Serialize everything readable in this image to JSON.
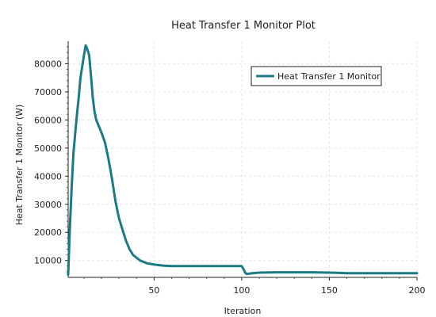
{
  "chart_data": {
    "type": "line",
    "title": "Heat Transfer 1 Monitor Plot",
    "xlabel": "Iteration",
    "ylabel": "Heat Transfer 1 Monitor (W)",
    "xlim": [
      1,
      200
    ],
    "ylim": [
      4000,
      88000
    ],
    "x_ticks": [
      50,
      100,
      150,
      200
    ],
    "y_ticks": [
      10000,
      20000,
      30000,
      40000,
      50000,
      60000,
      70000,
      80000
    ],
    "grid": true,
    "legend_position": "top-right",
    "series": [
      {
        "name": "Heat Transfer 1 Monitor",
        "color": "#1a7a86",
        "x": [
          1,
          2,
          3,
          4,
          5,
          6,
          7,
          8,
          9,
          10,
          11,
          12,
          13,
          14,
          15,
          16,
          17,
          18,
          19,
          20,
          22,
          24,
          26,
          28,
          30,
          32,
          34,
          36,
          38,
          40,
          42,
          44,
          46,
          48,
          50,
          52,
          55,
          58,
          60,
          65,
          70,
          80,
          90,
          100,
          101,
          102,
          103,
          105,
          110,
          120,
          130,
          140,
          150,
          155,
          160,
          170,
          180,
          190,
          200
        ],
        "y": [
          5000,
          22000,
          36000,
          48000,
          55000,
          62000,
          68000,
          75000,
          79000,
          83000,
          86500,
          85000,
          83000,
          76000,
          68000,
          63000,
          60000,
          58500,
          57000,
          55500,
          52000,
          46000,
          39000,
          31000,
          25000,
          21000,
          17000,
          14000,
          12000,
          11000,
          10000,
          9500,
          9000,
          8800,
          8600,
          8400,
          8200,
          8100,
          8000,
          8000,
          8000,
          8000,
          8000,
          8000,
          7000,
          5600,
          5200,
          5400,
          5700,
          5800,
          5800,
          5800,
          5700,
          5600,
          5500,
          5500,
          5500,
          5500,
          5500
        ]
      }
    ]
  }
}
